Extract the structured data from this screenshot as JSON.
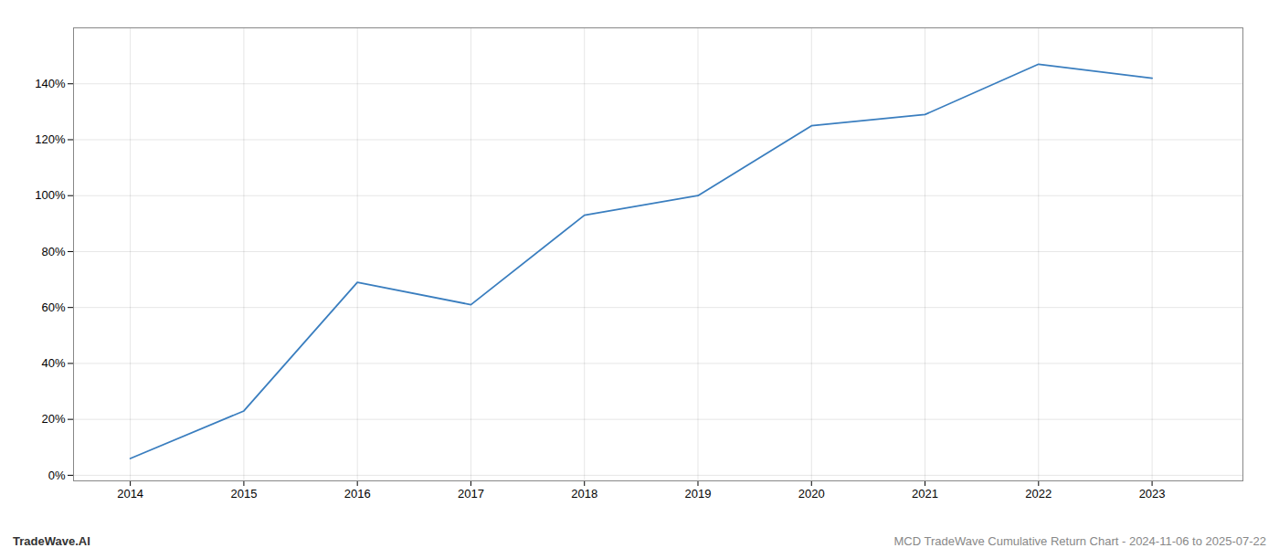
{
  "chart_data": {
    "type": "line",
    "x": [
      2014,
      2015,
      2016,
      2017,
      2018,
      2019,
      2020,
      2021,
      2022,
      2023
    ],
    "values": [
      0.06,
      0.23,
      0.69,
      0.61,
      0.93,
      1.0,
      1.25,
      1.29,
      1.47,
      1.42
    ],
    "color": "#3a7ebf",
    "xlim": [
      2013.5,
      2023.8
    ],
    "xticks": [
      2014,
      2015,
      2016,
      2017,
      2018,
      2019,
      2020,
      2021,
      2022,
      2023
    ],
    "ylim": [
      -0.02,
      1.6
    ],
    "yticks": [
      {
        "value": 0,
        "label": "0%"
      },
      {
        "value": 0.2,
        "label": "20%"
      },
      {
        "value": 0.4,
        "label": "40%"
      },
      {
        "value": 0.6,
        "label": "60%"
      },
      {
        "value": 0.8,
        "label": "80%"
      },
      {
        "value": 1.0,
        "label": "100%"
      },
      {
        "value": 1.2,
        "label": "120%"
      },
      {
        "value": 1.4,
        "label": "140%"
      }
    ],
    "grid": true,
    "annotations": [
      "TradeWave.AI",
      "MCD TradeWave Cumulative Return Chart - 2024-11-06 to 2025-07-22"
    ]
  }
}
